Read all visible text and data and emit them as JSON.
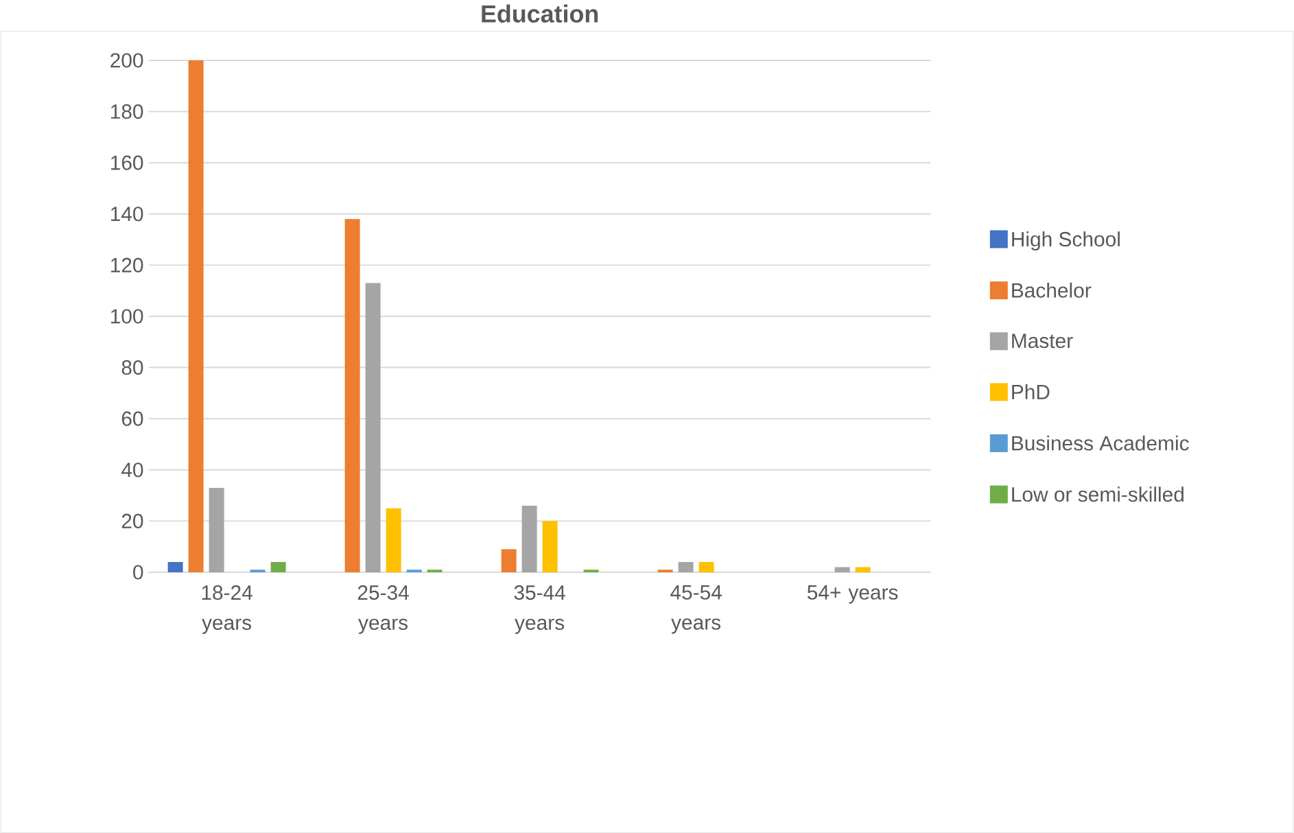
{
  "chart_data": {
    "type": "bar",
    "title": "Education",
    "categories": [
      "18-24 years",
      "25-34 years",
      "35-44 years",
      "45-54 years",
      "54+ years"
    ],
    "series": [
      {
        "name": "High School",
        "color": "#4472c4",
        "values": [
          4,
          0,
          0,
          0,
          0
        ]
      },
      {
        "name": "Bachelor",
        "color": "#ed7d31",
        "values": [
          200,
          138,
          9,
          1,
          0
        ]
      },
      {
        "name": "Master",
        "color": "#a5a5a5",
        "values": [
          33,
          113,
          26,
          4,
          2
        ]
      },
      {
        "name": "PhD",
        "color": "#ffc000",
        "values": [
          0,
          25,
          20,
          4,
          2
        ]
      },
      {
        "name": "Business Academic",
        "color": "#5b9bd5",
        "values": [
          1,
          1,
          0,
          0,
          0
        ]
      },
      {
        "name": "Low or semi-skilled",
        "color": "#70ad47",
        "values": [
          4,
          1,
          1,
          0,
          0
        ]
      }
    ],
    "ylim": [
      0,
      200
    ],
    "yticks": [
      0,
      20,
      40,
      60,
      80,
      100,
      120,
      140,
      160,
      180,
      200
    ],
    "grid": "y",
    "legend": "right"
  }
}
